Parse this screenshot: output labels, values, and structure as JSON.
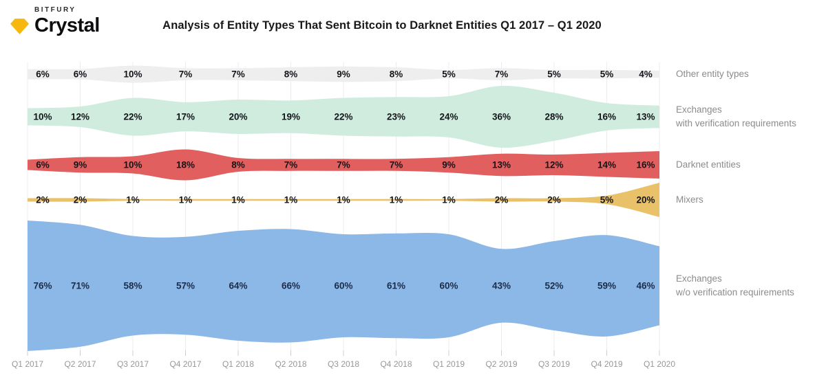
{
  "logo": {
    "brand": "BITFURY",
    "product": "Crystal",
    "gem_color": "#F6B80E"
  },
  "title": "Analysis of Entity Types That Sent Bitcoin to Darknet Entities Q1 2017 – Q1 2020",
  "chart_data": {
    "type": "area",
    "variant": "separated-streamgraph-rows",
    "title": "Analysis of Entity Types That Sent Bitcoin to Darknet Entities Q1 2017 – Q1 2020",
    "x": [
      "Q1 2017",
      "Q2 2017",
      "Q3 2017",
      "Q4 2017",
      "Q1 2018",
      "Q2 2018",
      "Q3 2018",
      "Q4 2018",
      "Q1 2019",
      "Q2 2019",
      "Q3 2019",
      "Q4 2019",
      "Q1 2020"
    ],
    "unit": "%",
    "grid": true,
    "legend_position": "right",
    "series": [
      {
        "name": "Other entity types",
        "legend_lines": [
          "Other entity types"
        ],
        "color": "#eeeeef",
        "label_color": "#141519",
        "values": [
          6,
          6,
          10,
          7,
          7,
          8,
          9,
          8,
          5,
          7,
          5,
          5,
          4
        ]
      },
      {
        "name": "Exchanges with verification requirements",
        "legend_lines": [
          "Exchanges",
          "with verification requirements"
        ],
        "color": "#cfecdf",
        "label_color": "#141519",
        "values": [
          10,
          12,
          22,
          17,
          20,
          19,
          22,
          23,
          24,
          36,
          28,
          16,
          13
        ]
      },
      {
        "name": "Darknet entities",
        "legend_lines": [
          "Darknet entities"
        ],
        "color": "#e25f5f",
        "label_color": "#141519",
        "values": [
          6,
          9,
          10,
          18,
          8,
          7,
          7,
          7,
          9,
          13,
          12,
          14,
          16
        ]
      },
      {
        "name": "Mixers",
        "legend_lines": [
          "Mixers"
        ],
        "color": "#e8c169",
        "label_color": "#141519",
        "values": [
          2,
          2,
          1,
          1,
          1,
          1,
          1,
          1,
          1,
          2,
          2,
          5,
          20
        ]
      },
      {
        "name": "Exchanges w/o verification requirements",
        "legend_lines": [
          "Exchanges",
          "w/o verification requirements"
        ],
        "color": "#8bb8e7",
        "label_color": "#1d2b47",
        "values": [
          76,
          71,
          58,
          57,
          64,
          66,
          60,
          61,
          60,
          43,
          52,
          59,
          46
        ]
      }
    ]
  }
}
